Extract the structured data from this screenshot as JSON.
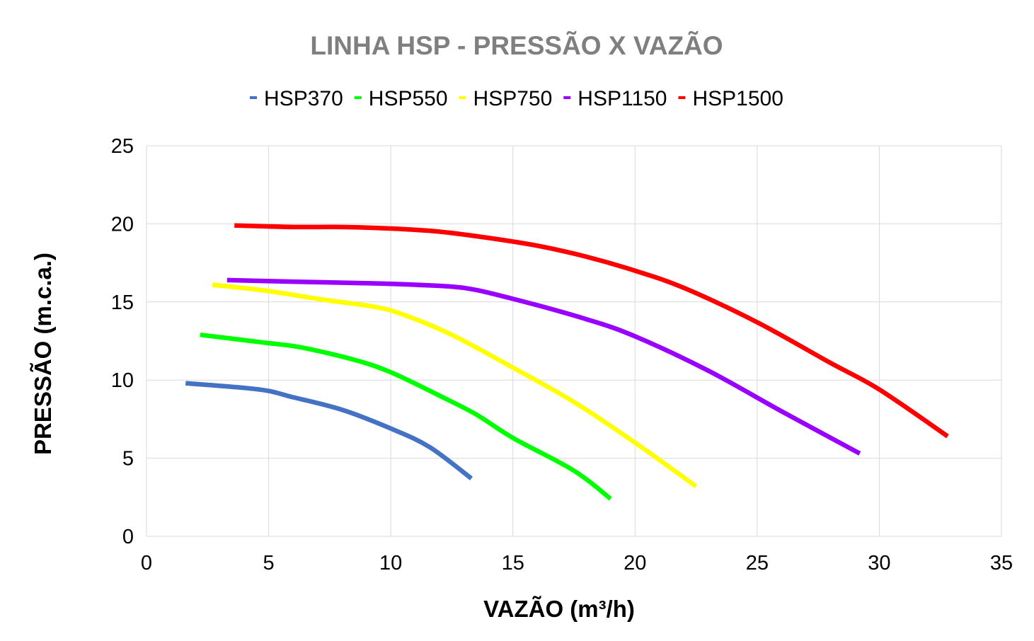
{
  "chart_data": {
    "type": "line",
    "title": "LINHA HSP - PRESSÃO X VAZÃO",
    "xlabel": "VAZÃO (m³/h)",
    "ylabel": "PRESSÃO (m.c.a.)",
    "xlim": [
      0,
      35
    ],
    "ylim": [
      0,
      25
    ],
    "xticks": [
      0,
      5,
      10,
      15,
      20,
      25,
      30,
      35
    ],
    "yticks": [
      0,
      5,
      10,
      15,
      20,
      25
    ],
    "grid": true,
    "legend_position": "top",
    "series": [
      {
        "name": "HSP370",
        "color": "#4472c4",
        "x": [
          1.6,
          4.6,
          6.0,
          8.0,
          10.0,
          11.6,
          13.3
        ],
        "y": [
          9.8,
          9.4,
          8.9,
          8.1,
          6.9,
          5.7,
          3.7
        ]
      },
      {
        "name": "HSP550",
        "color": "#00ff00",
        "x": [
          2.2,
          4.8,
          6.3,
          8.5,
          10.0,
          12.0,
          13.5,
          15.0,
          17.5,
          19.0
        ],
        "y": [
          12.9,
          12.4,
          12.1,
          11.3,
          10.5,
          9.0,
          7.8,
          6.3,
          4.2,
          2.4
        ]
      },
      {
        "name": "HSP750",
        "color": "#ffff00",
        "x": [
          2.7,
          5.0,
          7.0,
          9.3,
          10.5,
          12.5,
          15.0,
          17.5,
          20.0,
          22.5
        ],
        "y": [
          16.1,
          15.7,
          15.2,
          14.7,
          14.2,
          12.9,
          10.8,
          8.6,
          6.0,
          3.2
        ]
      },
      {
        "name": "HSP1150",
        "color": "#9900ff",
        "x": [
          3.3,
          6.0,
          9.0,
          11.0,
          13.0,
          15.0,
          18.0,
          20.0,
          23.0,
          26.0,
          29.2
        ],
        "y": [
          16.4,
          16.3,
          16.2,
          16.1,
          15.9,
          15.2,
          13.9,
          12.8,
          10.6,
          8.0,
          5.3
        ]
      },
      {
        "name": "HSP1500",
        "color": "#ff0000",
        "x": [
          3.6,
          6.0,
          8.0,
          10.0,
          12.0,
          14.0,
          16.0,
          18.0,
          20.0,
          22.0,
          25.0,
          28.0,
          30.0,
          32.8
        ],
        "y": [
          19.9,
          19.8,
          19.8,
          19.7,
          19.5,
          19.1,
          18.6,
          17.9,
          17.0,
          15.9,
          13.7,
          11.1,
          9.4,
          6.4
        ]
      }
    ]
  }
}
